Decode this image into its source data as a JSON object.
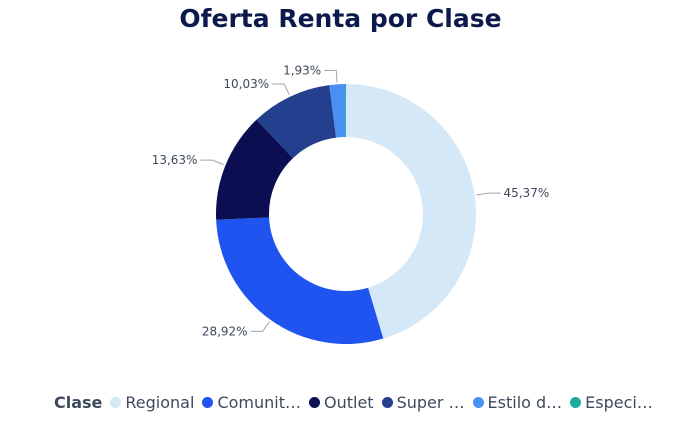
{
  "chart_data": {
    "type": "pie",
    "title": "Oferta Renta por Clase",
    "legend_title": "Clase",
    "legend_position": "bottom",
    "slices": [
      {
        "name": "Regional",
        "legend_label": "Regional",
        "value": 45.37,
        "label": "45,37%",
        "color": "#d4e8f8"
      },
      {
        "name": "Comunitario",
        "legend_label": "Comunit…",
        "value": 28.92,
        "label": "28,92%",
        "color": "#1f54f0"
      },
      {
        "name": "Outlet",
        "legend_label": "Outlet",
        "value": 13.63,
        "label": "13,63%",
        "color": "#0b0f52"
      },
      {
        "name": "Super Regional",
        "legend_label": "Super …",
        "value": 10.03,
        "label": "10,03%",
        "color": "#233f8e"
      },
      {
        "name": "Estilo de Vida",
        "legend_label": "Estilo d…",
        "value": 1.93,
        "label": "1,93%",
        "color": "#4a8ff4"
      },
      {
        "name": "Especializado",
        "legend_label": "Especi…",
        "value": 0.12,
        "label": "",
        "color": "#1fa8a0"
      }
    ]
  }
}
